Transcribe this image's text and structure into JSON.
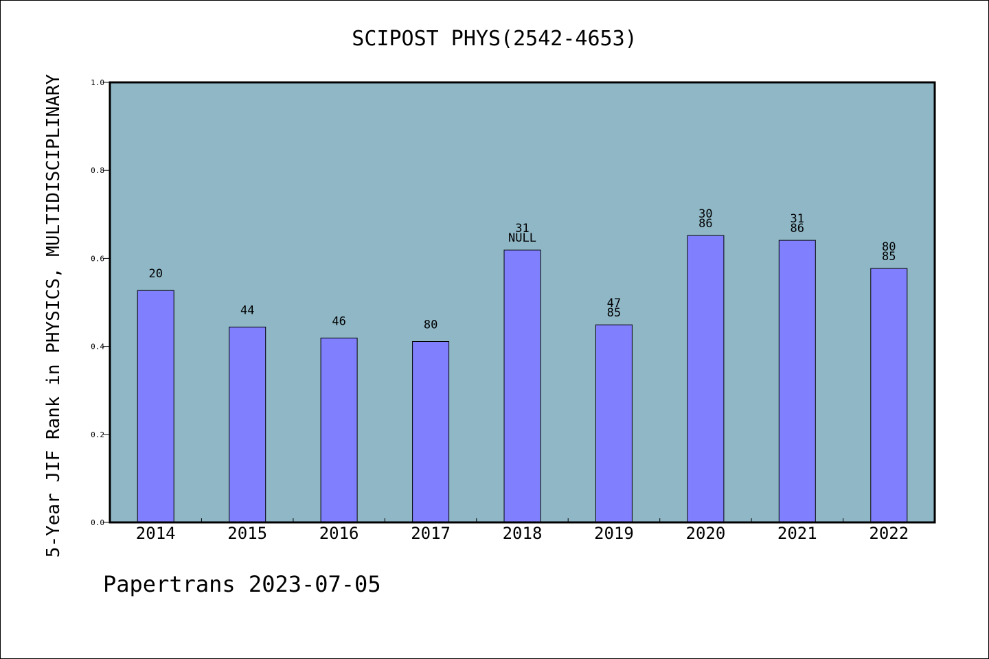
{
  "footer": {
    "text": "Papertrans 2023-07-05"
  },
  "colors": {
    "plot_background": "#8fb7c6",
    "bar_fill": "#8080ff",
    "bar_stroke": "#000000",
    "axis": "#000000"
  },
  "chart_data": {
    "type": "bar",
    "title": "SCIPOST PHYS(2542-4653)",
    "xlabel": "",
    "ylabel": "5-Year JIF Rank in PHYSICS, MULTIDISCIPLINARY",
    "ylim": [
      0,
      1
    ],
    "yticks": [
      "0.0",
      "0.2",
      "0.4",
      "0.6",
      "0.8",
      "1.0"
    ],
    "grid": false,
    "categories": [
      "2014",
      "2015",
      "2016",
      "2017",
      "2018",
      "2019",
      "2020",
      "2021",
      "2022"
    ],
    "values": [
      0.527,
      0.444,
      0.419,
      0.411,
      0.619,
      0.449,
      0.652,
      0.641,
      0.577
    ],
    "annotations": [
      [
        "20"
      ],
      [
        "44"
      ],
      [
        "46"
      ],
      [
        "80"
      ],
      [
        "31",
        "NULL"
      ],
      [
        "47",
        "85"
      ],
      [
        "30",
        "86"
      ],
      [
        "31",
        "86"
      ],
      [
        "80",
        "85"
      ]
    ]
  }
}
